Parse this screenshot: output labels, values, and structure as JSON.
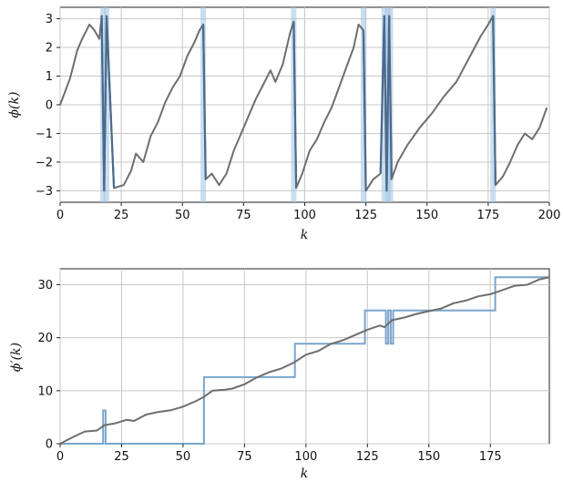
{
  "chart_data": [
    {
      "type": "line",
      "xlabel": "k",
      "ylabel": "ϕ(k)",
      "xlim": [
        0,
        200
      ],
      "ylim": [
        -3.4,
        3.4
      ],
      "xticks": [
        0,
        25,
        50,
        75,
        100,
        125,
        150,
        175,
        200
      ],
      "yticks": [
        -3,
        -2,
        -1,
        0,
        1,
        2,
        3
      ],
      "ytick_labels": [
        "−3",
        "−2",
        "−1",
        "0",
        "1",
        "2",
        "3"
      ],
      "grid": true,
      "colors": {
        "series": "#6e6e6e",
        "band": "#9ec2e4",
        "jump": "#4a6b8c"
      },
      "highlight_bands_k": [
        17.5,
        19,
        58.5,
        95.5,
        124,
        132.5,
        134,
        135,
        177
      ],
      "series": [
        {
          "x": [
            0,
            4,
            7,
            9,
            12,
            14,
            16,
            17,
            18,
            19,
            22,
            26,
            29,
            31,
            34,
            37,
            40,
            43,
            46,
            49,
            52,
            55,
            57,
            58.5,
            59.5,
            62,
            65,
            68,
            71,
            74,
            77,
            80,
            83,
            86,
            88,
            91,
            94,
            95.5,
            96.5,
            99,
            102,
            105,
            108,
            111,
            114,
            117,
            120,
            122,
            124,
            125,
            128,
            131,
            132.5,
            133.5,
            134.5,
            135.5,
            138,
            142,
            147,
            152,
            157,
            162,
            167,
            172,
            175,
            177,
            178,
            181,
            184,
            187,
            190,
            193,
            196,
            199
          ],
          "y": [
            0.0,
            0.9,
            1.9,
            2.3,
            2.8,
            2.6,
            2.3,
            3.1,
            -3.0,
            3.1,
            -2.9,
            -2.8,
            -2.3,
            -1.7,
            -2.0,
            -1.1,
            -0.6,
            0.1,
            0.6,
            1.0,
            1.7,
            2.2,
            2.6,
            2.8,
            -2.6,
            -2.4,
            -2.8,
            -2.4,
            -1.6,
            -1.0,
            -0.4,
            0.2,
            0.7,
            1.2,
            0.8,
            1.4,
            2.5,
            2.9,
            -2.9,
            -2.4,
            -1.6,
            -1.2,
            -0.6,
            -0.1,
            0.6,
            1.3,
            2.0,
            2.8,
            2.6,
            -3.0,
            -2.6,
            -2.4,
            3.1,
            -3.0,
            3.1,
            -2.6,
            -2.0,
            -1.4,
            -0.8,
            -0.3,
            0.3,
            0.8,
            1.6,
            2.4,
            2.8,
            3.1,
            -2.8,
            -2.5,
            -2.0,
            -1.4,
            -1.0,
            -1.2,
            -0.8,
            -0.1
          ]
        }
      ]
    },
    {
      "type": "line",
      "xlabel": "k",
      "ylabel": "ϕ′(k)",
      "xlim": [
        0,
        199
      ],
      "ylim": [
        0,
        33
      ],
      "xticks": [
        0,
        25,
        50,
        75,
        100,
        125,
        150,
        175
      ],
      "yticks": [
        0,
        10,
        20,
        30
      ],
      "grid": true,
      "colors": {
        "unwrapped": "#6e6e6e",
        "step": "#7aa5cc"
      },
      "series": [
        {
          "x": [
            0,
            5,
            10,
            15,
            18,
            22,
            27,
            30,
            35,
            40,
            45,
            50,
            55,
            58,
            62,
            67,
            70,
            75,
            80,
            85,
            90,
            95,
            100,
            105,
            110,
            115,
            120,
            125,
            130,
            132,
            135,
            140,
            145,
            150,
            155,
            160,
            165,
            170,
            175,
            180,
            185,
            190,
            195,
            199
          ],
          "y": [
            0.0,
            1.2,
            2.3,
            2.5,
            3.5,
            3.8,
            4.5,
            4.3,
            5.5,
            6.0,
            6.3,
            7.0,
            8.0,
            8.7,
            10.0,
            10.2,
            10.4,
            11.2,
            12.5,
            13.5,
            14.2,
            15.3,
            16.8,
            17.5,
            18.8,
            19.5,
            20.5,
            21.5,
            22.3,
            22.0,
            23.3,
            23.8,
            24.5,
            25.0,
            25.5,
            26.5,
            27.0,
            27.8,
            28.2,
            29.0,
            29.8,
            30.0,
            31.0,
            31.4
          ]
        },
        {
          "x": [
            0,
            17.5,
            17.5,
            18.5,
            18.5,
            58.5,
            58.5,
            95.5,
            95.5,
            124,
            124,
            132.5,
            132.5,
            133.5,
            133.5,
            134.5,
            134.5,
            135.5,
            135.5,
            177,
            177,
            199
          ],
          "y": [
            0,
            0,
            6.28,
            6.28,
            0,
            0,
            12.57,
            12.57,
            18.85,
            18.85,
            25.13,
            25.13,
            18.85,
            18.85,
            25.13,
            25.13,
            18.85,
            18.85,
            25.13,
            25.13,
            31.42,
            31.42
          ],
          "y_note_free": true
        }
      ]
    }
  ]
}
